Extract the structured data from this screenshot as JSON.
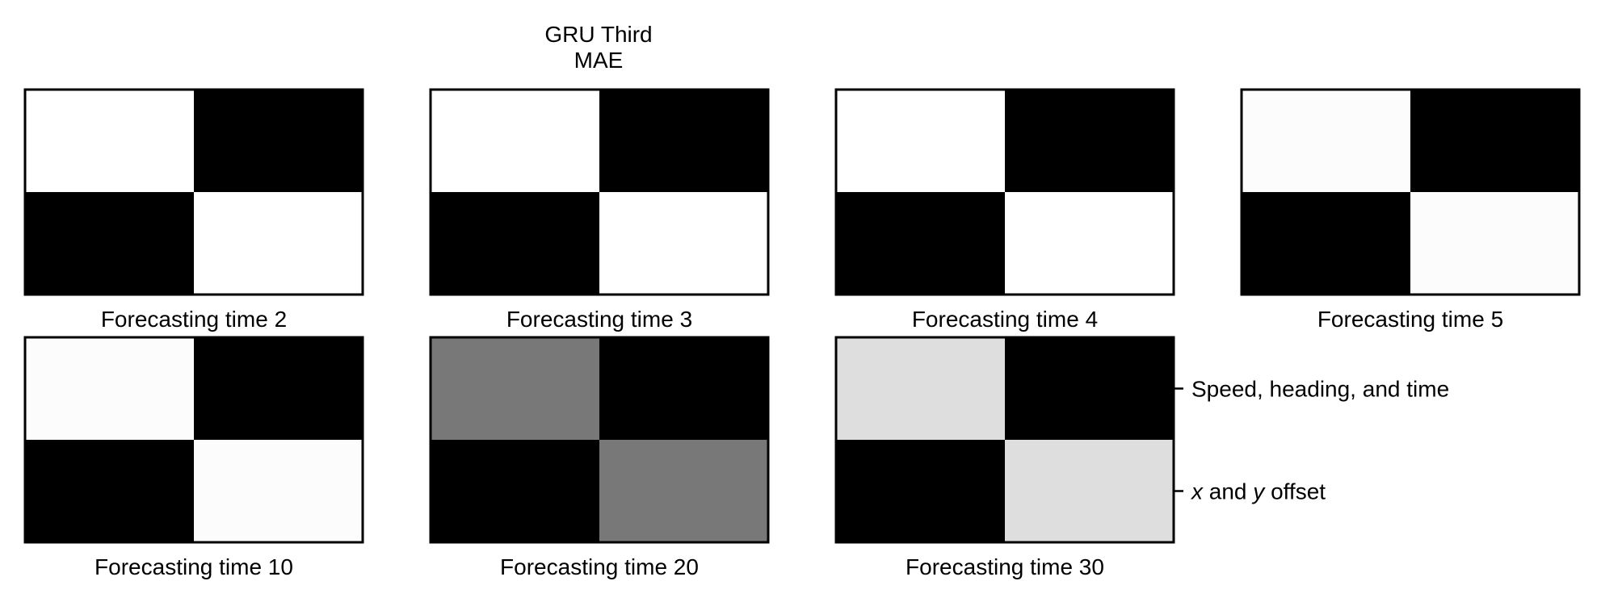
{
  "figure": {
    "title_line1": "GRU Third",
    "title_line2": "MAE"
  },
  "chart_data": {
    "type": "heatmap",
    "layout": "grid of 2x2 heatmaps, 4 panels in first row, 3 in second row",
    "grid": false,
    "colormap": "grayscale (0 = black, 1 = white)",
    "row_labels": [
      "Speed, heading, and time",
      "x and y offset"
    ],
    "panels": [
      {
        "label": "Forecasting time 2",
        "values": [
          [
            1.0,
            0.0
          ],
          [
            0.0,
            1.0
          ]
        ]
      },
      {
        "label": "Forecasting time 3",
        "values": [
          [
            1.0,
            0.0
          ],
          [
            0.0,
            1.0
          ]
        ]
      },
      {
        "label": "Forecasting time 4",
        "values": [
          [
            1.0,
            0.0
          ],
          [
            0.0,
            1.0
          ]
        ]
      },
      {
        "label": "Forecasting time 5",
        "values": [
          [
            0.99,
            0.0
          ],
          [
            0.0,
            0.99
          ]
        ]
      },
      {
        "label": "Forecasting time 10",
        "values": [
          [
            0.99,
            0.0
          ],
          [
            0.0,
            0.99
          ]
        ]
      },
      {
        "label": "Forecasting time 20",
        "values": [
          [
            0.47,
            0.0
          ],
          [
            0.0,
            0.47
          ]
        ]
      },
      {
        "label": "Forecasting time 30",
        "values": [
          [
            0.87,
            0.0
          ],
          [
            0.0,
            0.87
          ]
        ]
      }
    ]
  }
}
